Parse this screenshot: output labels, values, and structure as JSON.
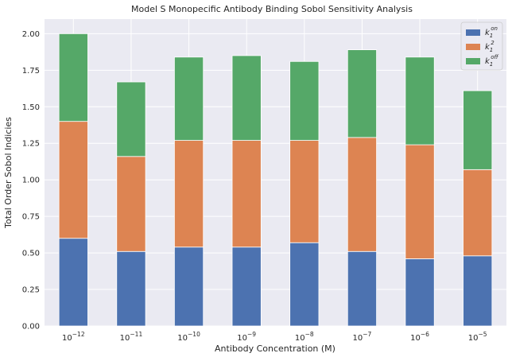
{
  "chart_data": {
    "type": "bar",
    "stacked": true,
    "title": "Model S Monopecific Antibody Binding Sobol Sensitivity Analysis",
    "xlabel": "Antibody Concentration (M)",
    "ylabel": "Total Order Sobol Indicies",
    "categories": [
      {
        "base": "10",
        "exp": "−12"
      },
      {
        "base": "10",
        "exp": "−11"
      },
      {
        "base": "10",
        "exp": "−10"
      },
      {
        "base": "10",
        "exp": "−9"
      },
      {
        "base": "10",
        "exp": "−8"
      },
      {
        "base": "10",
        "exp": "−7"
      },
      {
        "base": "10",
        "exp": "−6"
      },
      {
        "base": "10",
        "exp": "−5"
      }
    ],
    "ylim": [
      0,
      2.1
    ],
    "yticks": [
      "0.00",
      "0.25",
      "0.50",
      "0.75",
      "1.00",
      "1.25",
      "1.50",
      "1.75",
      "2.00"
    ],
    "grid": true,
    "legend_position": "top-right",
    "series": [
      {
        "name": {
          "base": "k",
          "sub": "1",
          "sup": "on"
        },
        "color": "#4c72b0",
        "values": [
          0.6,
          0.51,
          0.54,
          0.54,
          0.57,
          0.51,
          0.46,
          0.48
        ]
      },
      {
        "name": {
          "base": "k",
          "sub": "1",
          "sup": "2"
        },
        "color": "#dd8452",
        "values": [
          0.8,
          0.65,
          0.73,
          0.73,
          0.7,
          0.78,
          0.78,
          0.59
        ]
      },
      {
        "name": {
          "base": "k",
          "sub": "1",
          "sup": "off"
        },
        "color": "#55a868",
        "values": [
          0.6,
          0.51,
          0.57,
          0.58,
          0.54,
          0.6,
          0.6,
          0.54
        ]
      }
    ],
    "colors": {
      "plot_background": "#eaeaf2",
      "grid": "#ffffff"
    }
  }
}
